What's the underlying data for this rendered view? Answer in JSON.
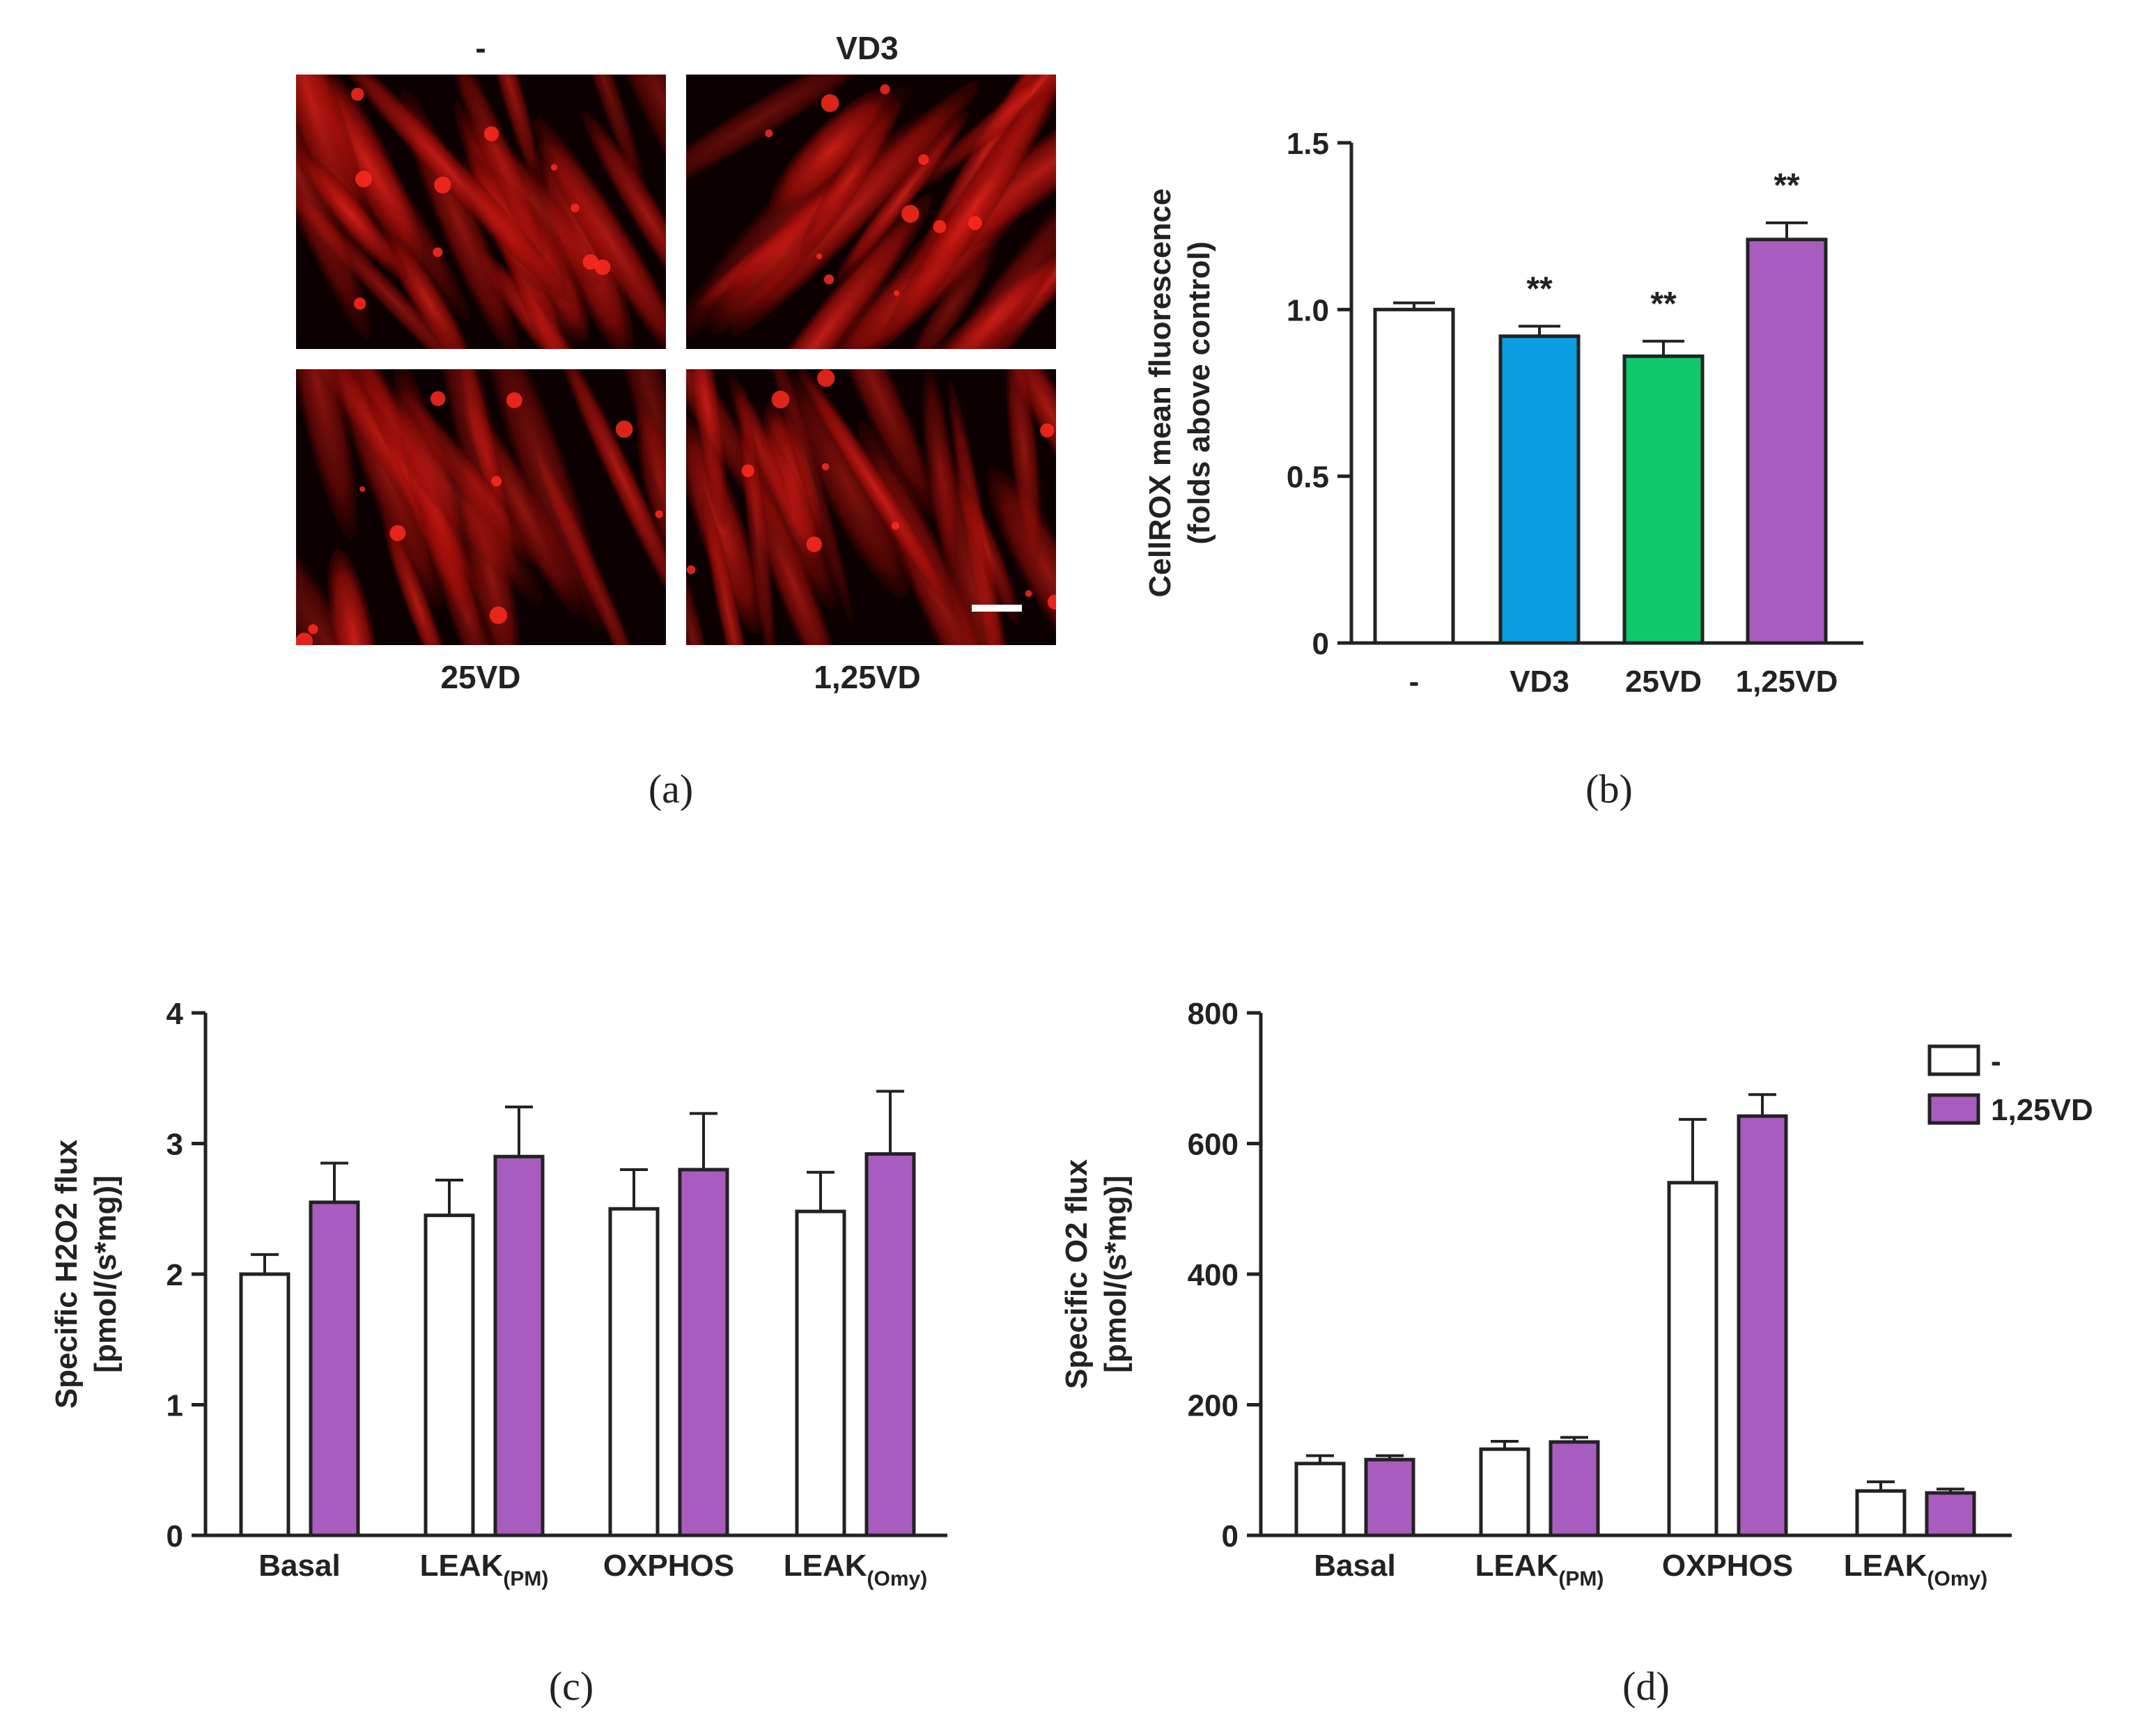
{
  "panel_a": {
    "labels": {
      "top_left": "-",
      "top_right": "VD3",
      "bottom_left": "25VD",
      "bottom_right": "1,25VD"
    },
    "caption": "(a)"
  },
  "chart_data": [
    {
      "panel": "b",
      "type": "bar",
      "caption": "(b)",
      "categories": [
        "-",
        "VD3",
        "25VD",
        "1,25VD"
      ],
      "values": [
        1.0,
        0.92,
        0.86,
        1.21
      ],
      "errors": [
        0.02,
        0.03,
        0.045,
        0.05
      ],
      "colors": [
        "#ffffff",
        "#0a9ee0",
        "#0dc96b",
        "#a95cbf"
      ],
      "annotations": [
        "",
        "**",
        "**",
        "**"
      ],
      "ylabel_lines": [
        "CellROX mean fluorescence",
        "(folds above control)"
      ],
      "yticks": [
        "0",
        "0.5",
        "1.0",
        "1.5"
      ],
      "ylim": [
        0,
        1.5
      ]
    },
    {
      "panel": "c",
      "type": "bar",
      "caption": "(c)",
      "categories": [
        "Basal",
        "LEAK(PM)",
        "OXPHOS",
        "LEAK(Omy)"
      ],
      "series": [
        {
          "name": "-",
          "values": [
            2.0,
            2.45,
            2.5,
            2.48
          ],
          "errors": [
            0.15,
            0.27,
            0.3,
            0.3
          ]
        },
        {
          "name": "1,25VD",
          "values": [
            2.55,
            2.9,
            2.8,
            2.92
          ],
          "errors": [
            0.3,
            0.38,
            0.43,
            0.48
          ]
        }
      ],
      "ylabel_lines": [
        "Specific H2O2 flux",
        "[pmol/(s*mg)]"
      ],
      "yticks": [
        "0",
        "1",
        "2",
        "3",
        "4"
      ],
      "ylim": [
        0,
        4
      ]
    },
    {
      "panel": "d",
      "type": "bar",
      "caption": "(d)",
      "categories": [
        "Basal",
        "LEAK(PM)",
        "OXPHOS",
        "LEAK(Omy)"
      ],
      "series": [
        {
          "name": "-",
          "values": [
            110,
            132,
            540,
            68
          ],
          "errors": [
            12,
            12,
            97,
            14
          ]
        },
        {
          "name": "1,25VD",
          "values": [
            116,
            143,
            642,
            65
          ],
          "errors": [
            6,
            7,
            33,
            6
          ]
        }
      ],
      "ylabel_lines": [
        "Specific O2 flux",
        "[pmol/(s*mg)]"
      ],
      "yticks": [
        "0",
        "200",
        "400",
        "600",
        "800"
      ],
      "ylim": [
        0,
        800
      ],
      "legend": {
        "position": "top-right",
        "entries": [
          "-",
          "1,25VD"
        ]
      }
    }
  ],
  "colors": {
    "control": "#ffffff",
    "vd3": "#0a9ee0",
    "vd25": "#0dc96b",
    "vd125": "#a95cbf",
    "micrograph_bg": "#0c0000",
    "cell_red": "#c8140f"
  }
}
